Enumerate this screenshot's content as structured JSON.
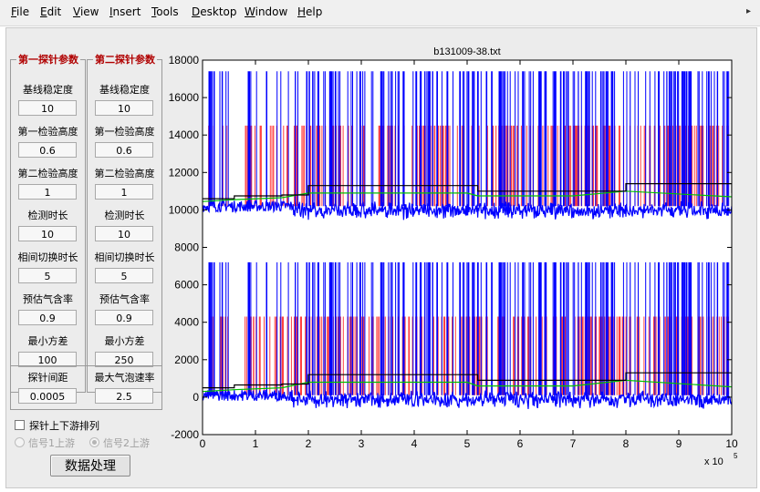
{
  "menubar": {
    "items": [
      {
        "key": "F",
        "rest": "ile"
      },
      {
        "key": "E",
        "rest": "dit"
      },
      {
        "key": "V",
        "rest": "iew"
      },
      {
        "key": "I",
        "rest": "nsert"
      },
      {
        "key": "T",
        "rest": "ools"
      },
      {
        "key": "D",
        "rest": "esktop"
      },
      {
        "key": "W",
        "rest": "indow"
      },
      {
        "key": "H",
        "rest": "elp"
      }
    ],
    "overflow_icon": "chevron-right-icon",
    "overflow_glyph": "▸"
  },
  "probe1": {
    "title": "第一探针参数",
    "fields": [
      {
        "label": "基线稳定度",
        "value": "10"
      },
      {
        "label": "第一检验高度",
        "value": "0.6"
      },
      {
        "label": "第二检验高度",
        "value": "1"
      },
      {
        "label": "检测时长",
        "value": "10"
      },
      {
        "label": "相间切换时长",
        "value": "5"
      },
      {
        "label": "预估气含率",
        "value": "0.9"
      },
      {
        "label": "最小方差",
        "value": "100"
      }
    ]
  },
  "probe2": {
    "title": "第二探针参数",
    "fields": [
      {
        "label": "基线稳定度",
        "value": "10"
      },
      {
        "label": "第一检验高度",
        "value": "0.6"
      },
      {
        "label": "第二检验高度",
        "value": "1"
      },
      {
        "label": "检测时长",
        "value": "10"
      },
      {
        "label": "相间切换时长",
        "value": "5"
      },
      {
        "label": "预估气含率",
        "value": "0.9"
      },
      {
        "label": "最小方差",
        "value": "250"
      }
    ]
  },
  "extra": {
    "spacing_label": "探针间距",
    "spacing_value": "0.0005",
    "max_rate_label": "最大气泡速率",
    "max_rate_value": "2.5"
  },
  "options": {
    "arrange_label": "探针上下游排列",
    "arrange_checked": false,
    "radio1_label": "信号1上游",
    "radio2_label": "信号2上游",
    "radio_selected": 2
  },
  "process_button": "数据处理",
  "chart_data": {
    "type": "line",
    "title": "b131009-38.txt",
    "xlabel": "",
    "ylabel": "",
    "x_exponent_label": "x 10",
    "x_exponent_power": "5",
    "xlim": [
      0,
      10
    ],
    "ylim": [
      -2000,
      18000
    ],
    "xticks": [
      0,
      1,
      2,
      3,
      4,
      5,
      6,
      7,
      8,
      9,
      10
    ],
    "yticks": [
      -2000,
      0,
      2000,
      4000,
      6000,
      8000,
      10000,
      12000,
      14000,
      16000,
      18000
    ],
    "grid": false,
    "colors": {
      "signal": "#0000ff",
      "threshold_region": "#ff2020",
      "baseline_level": "#000000",
      "threshold_level": "#00c000"
    },
    "series": [
      {
        "signal": {
          "baseline": 10200,
          "peak": 17400,
          "noise": 300
        },
        "red_region_top": 14500,
        "red_region_bottom": 10200,
        "black_level": {
          "x": [
            0,
            0.6,
            1.5,
            2.0,
            5.0,
            5.2,
            7.0,
            8.0,
            10.0
          ],
          "y": [
            10600,
            10750,
            10800,
            11300,
            11300,
            11000,
            11000,
            11400,
            10900
          ]
        },
        "green_level": {
          "x": [
            0,
            0.6,
            1.5,
            2.0,
            5.0,
            5.2,
            7.0,
            8.0,
            10.0
          ],
          "y": [
            10450,
            10550,
            10650,
            10900,
            10900,
            10750,
            10750,
            11000,
            10700
          ]
        }
      },
      {
        "signal": {
          "baseline": 100,
          "peak": 7200,
          "noise": 300
        },
        "red_region_top": 4300,
        "red_region_bottom": 100,
        "black_level": {
          "x": [
            0,
            0.6,
            1.5,
            2.0,
            5.0,
            5.2,
            7.0,
            8.0,
            10.0
          ],
          "y": [
            500,
            650,
            700,
            1200,
            1200,
            900,
            900,
            1300,
            800
          ]
        },
        "green_level": {
          "x": [
            0,
            0.6,
            1.5,
            2.0,
            5.0,
            5.2,
            7.0,
            8.0,
            10.0
          ],
          "y": [
            300,
            400,
            500,
            800,
            800,
            600,
            600,
            900,
            550
          ]
        }
      }
    ]
  }
}
